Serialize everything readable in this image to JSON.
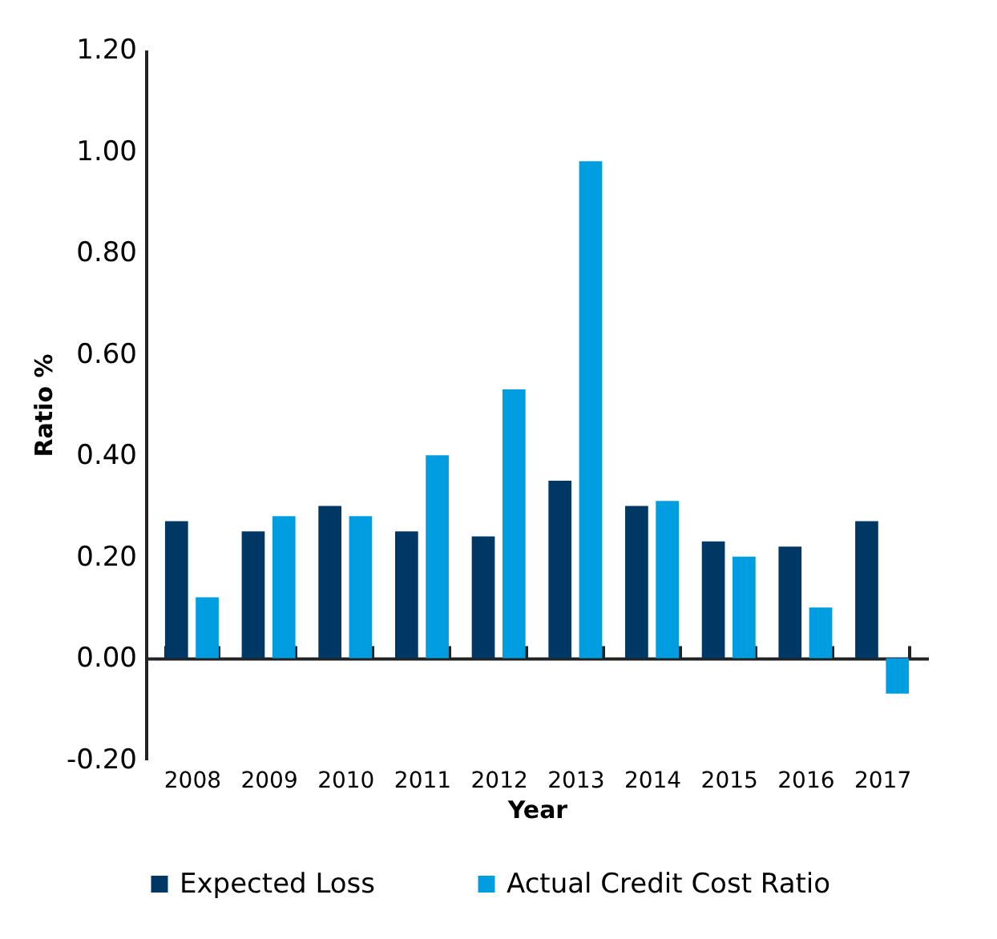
{
  "chart_data": {
    "type": "bar",
    "xlabel": "Year",
    "ylabel": "Ratio %",
    "categories": [
      "2008",
      "2009",
      "2010",
      "2011",
      "2012",
      "2013",
      "2014",
      "2015",
      "2016",
      "2017"
    ],
    "series": [
      {
        "name": "Expected Loss",
        "color": "#003865",
        "values": [
          0.27,
          0.25,
          0.3,
          0.25,
          0.24,
          0.35,
          0.3,
          0.23,
          0.22,
          0.27
        ]
      },
      {
        "name": "Actual Credit Cost Ratio",
        "color": "#009ee0",
        "values": [
          0.12,
          0.28,
          0.28,
          0.4,
          0.53,
          0.98,
          0.31,
          0.2,
          0.1,
          -0.07
        ]
      }
    ],
    "ylim": [
      -0.2,
      1.2
    ],
    "yticks": [
      {
        "value": -0.2,
        "label": "-0.20"
      },
      {
        "value": 0,
        "label": "0.00"
      },
      {
        "value": 0.2,
        "label": "0.20"
      },
      {
        "value": 0.4,
        "label": "0.40"
      },
      {
        "value": 0.6,
        "label": "0.60"
      },
      {
        "value": 0.8,
        "label": "0.80"
      },
      {
        "value": 1.0,
        "label": "1.00"
      },
      {
        "value": 1.2,
        "label": "1.20"
      }
    ],
    "legend": "bottom"
  }
}
